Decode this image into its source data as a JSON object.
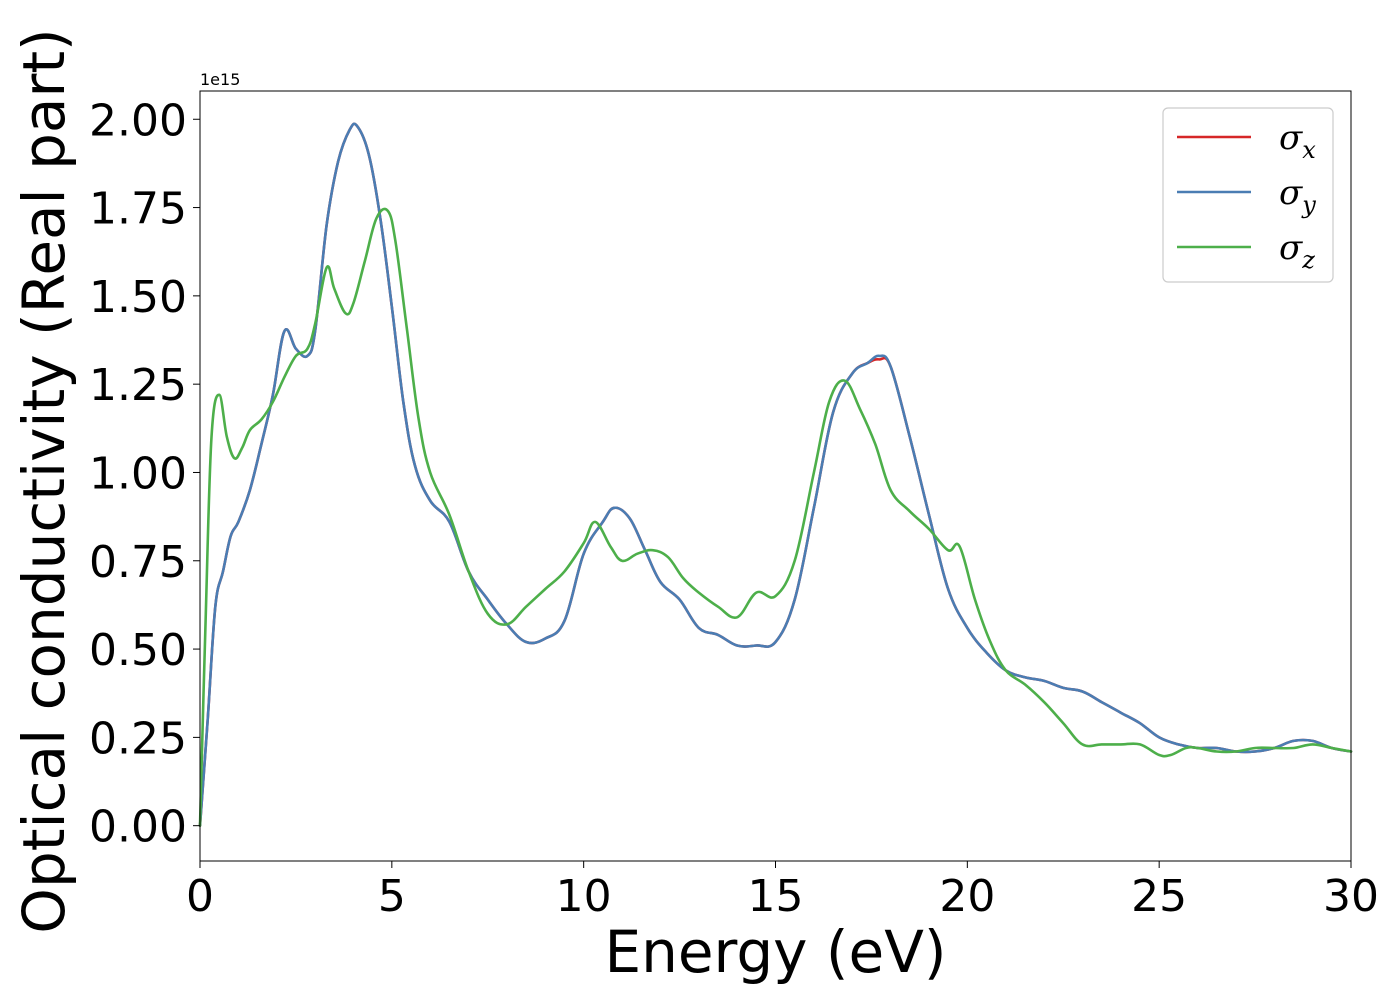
{
  "chart_data": {
    "type": "line",
    "title": "",
    "xlabel": "Energy (eV)",
    "ylabel": "Optical conductivity (Real part)",
    "y_offset_label": "1e15",
    "xlim": [
      0,
      30
    ],
    "ylim": [
      -0.1,
      2.08
    ],
    "xticks": [
      0,
      5,
      10,
      15,
      20,
      25,
      30
    ],
    "xtick_labels": [
      "0",
      "5",
      "10",
      "15",
      "20",
      "25",
      "30"
    ],
    "yticks": [
      0,
      0.25,
      0.5,
      0.75,
      1.0,
      1.25,
      1.5,
      1.75,
      2.0
    ],
    "ytick_labels": [
      "0.00",
      "0.25",
      "0.50",
      "0.75",
      "1.00",
      "1.25",
      "1.50",
      "1.75",
      "2.00"
    ],
    "grid": false,
    "legend_position": "top-right",
    "series": [
      {
        "name": "σx",
        "symbol": "σ",
        "subscript": "x",
        "color": "#d62728",
        "x": [
          0,
          0.2,
          0.4,
          0.6,
          0.8,
          1.0,
          1.3,
          1.6,
          1.9,
          2.2,
          2.5,
          2.8,
          3.0,
          3.3,
          3.6,
          3.9,
          4.1,
          4.4,
          4.7,
          5.0,
          5.3,
          5.6,
          6.0,
          6.5,
          7.0,
          7.5,
          8.0,
          8.5,
          9.0,
          9.5,
          10.0,
          10.5,
          10.8,
          11.2,
          11.6,
          12.0,
          12.5,
          13.0,
          13.5,
          14.0,
          14.5,
          15.0,
          15.5,
          16.0,
          16.5,
          17.0,
          17.4,
          17.7,
          18.0,
          18.5,
          19.0,
          19.5,
          20.0,
          20.5,
          21.0,
          21.5,
          22.0,
          22.5,
          23.0,
          23.5,
          24.0,
          24.5,
          25.0,
          25.5,
          26.0,
          26.5,
          27.0,
          27.5,
          28.0,
          28.5,
          29.0,
          29.5,
          30.0
        ],
        "y": [
          0.0,
          0.3,
          0.62,
          0.72,
          0.82,
          0.86,
          0.95,
          1.08,
          1.22,
          1.4,
          1.35,
          1.33,
          1.4,
          1.7,
          1.88,
          1.97,
          1.98,
          1.9,
          1.72,
          1.47,
          1.2,
          1.02,
          0.92,
          0.86,
          0.72,
          0.64,
          0.57,
          0.52,
          0.53,
          0.58,
          0.77,
          0.86,
          0.9,
          0.87,
          0.78,
          0.69,
          0.64,
          0.56,
          0.54,
          0.51,
          0.51,
          0.52,
          0.64,
          0.9,
          1.17,
          1.28,
          1.31,
          1.32,
          1.3,
          1.1,
          0.88,
          0.67,
          0.56,
          0.49,
          0.44,
          0.42,
          0.41,
          0.39,
          0.38,
          0.35,
          0.32,
          0.29,
          0.25,
          0.23,
          0.22,
          0.22,
          0.21,
          0.21,
          0.22,
          0.24,
          0.24,
          0.22,
          0.21
        ]
      },
      {
        "name": "σy",
        "symbol": "σ",
        "subscript": "y",
        "color": "#4a7db3",
        "x": [
          0,
          0.2,
          0.4,
          0.6,
          0.8,
          1.0,
          1.3,
          1.6,
          1.9,
          2.2,
          2.5,
          2.8,
          3.0,
          3.3,
          3.6,
          3.9,
          4.1,
          4.4,
          4.7,
          5.0,
          5.3,
          5.6,
          6.0,
          6.5,
          7.0,
          7.5,
          8.0,
          8.5,
          9.0,
          9.5,
          10.0,
          10.5,
          10.8,
          11.2,
          11.6,
          12.0,
          12.5,
          13.0,
          13.5,
          14.0,
          14.5,
          15.0,
          15.5,
          16.0,
          16.5,
          17.0,
          17.4,
          17.7,
          18.0,
          18.5,
          19.0,
          19.5,
          20.0,
          20.5,
          21.0,
          21.5,
          22.0,
          22.5,
          23.0,
          23.5,
          24.0,
          24.5,
          25.0,
          25.5,
          26.0,
          26.5,
          27.0,
          27.5,
          28.0,
          28.5,
          29.0,
          29.5,
          30.0
        ],
        "y": [
          0.0,
          0.3,
          0.62,
          0.72,
          0.82,
          0.86,
          0.95,
          1.08,
          1.22,
          1.4,
          1.35,
          1.33,
          1.4,
          1.7,
          1.88,
          1.97,
          1.98,
          1.9,
          1.72,
          1.47,
          1.2,
          1.02,
          0.92,
          0.86,
          0.72,
          0.64,
          0.57,
          0.52,
          0.53,
          0.58,
          0.77,
          0.86,
          0.9,
          0.87,
          0.78,
          0.69,
          0.64,
          0.56,
          0.54,
          0.51,
          0.51,
          0.52,
          0.64,
          0.9,
          1.17,
          1.28,
          1.31,
          1.33,
          1.3,
          1.1,
          0.88,
          0.67,
          0.56,
          0.49,
          0.44,
          0.42,
          0.41,
          0.39,
          0.38,
          0.35,
          0.32,
          0.29,
          0.25,
          0.23,
          0.22,
          0.22,
          0.21,
          0.21,
          0.22,
          0.24,
          0.24,
          0.22,
          0.21
        ]
      },
      {
        "name": "σz",
        "symbol": "σ",
        "subscript": "z",
        "color": "#4daf4a",
        "x": [
          0,
          0.15,
          0.3,
          0.5,
          0.7,
          0.9,
          1.1,
          1.3,
          1.6,
          1.9,
          2.2,
          2.5,
          2.8,
          3.0,
          3.3,
          3.5,
          3.8,
          4.0,
          4.3,
          4.6,
          4.9,
          5.1,
          5.4,
          5.7,
          6.0,
          6.5,
          7.0,
          7.5,
          8.0,
          8.5,
          9.0,
          9.5,
          10.0,
          10.3,
          10.7,
          11.0,
          11.4,
          11.8,
          12.2,
          12.6,
          13.0,
          13.5,
          14.0,
          14.5,
          15.0,
          15.5,
          16.0,
          16.4,
          16.8,
          17.2,
          17.6,
          18.0,
          18.5,
          19.0,
          19.5,
          19.8,
          20.2,
          20.6,
          21.0,
          21.5,
          22.0,
          22.5,
          23.0,
          23.5,
          24.0,
          24.5,
          25.0,
          25.3,
          25.7,
          26.0,
          26.5,
          27.0,
          27.5,
          28.0,
          28.5,
          29.0,
          29.5,
          30.0
        ],
        "y": [
          0.0,
          0.6,
          1.1,
          1.22,
          1.1,
          1.04,
          1.07,
          1.12,
          1.15,
          1.2,
          1.27,
          1.33,
          1.35,
          1.42,
          1.58,
          1.52,
          1.45,
          1.48,
          1.6,
          1.72,
          1.74,
          1.65,
          1.4,
          1.15,
          1.0,
          0.88,
          0.72,
          0.6,
          0.57,
          0.62,
          0.67,
          0.72,
          0.8,
          0.86,
          0.79,
          0.75,
          0.77,
          0.78,
          0.76,
          0.7,
          0.66,
          0.62,
          0.59,
          0.66,
          0.65,
          0.75,
          1.0,
          1.2,
          1.26,
          1.18,
          1.08,
          0.95,
          0.89,
          0.84,
          0.78,
          0.79,
          0.64,
          0.52,
          0.44,
          0.4,
          0.35,
          0.29,
          0.23,
          0.23,
          0.23,
          0.23,
          0.2,
          0.2,
          0.22,
          0.22,
          0.21,
          0.21,
          0.22,
          0.22,
          0.22,
          0.23,
          0.22,
          0.21
        ]
      }
    ]
  }
}
